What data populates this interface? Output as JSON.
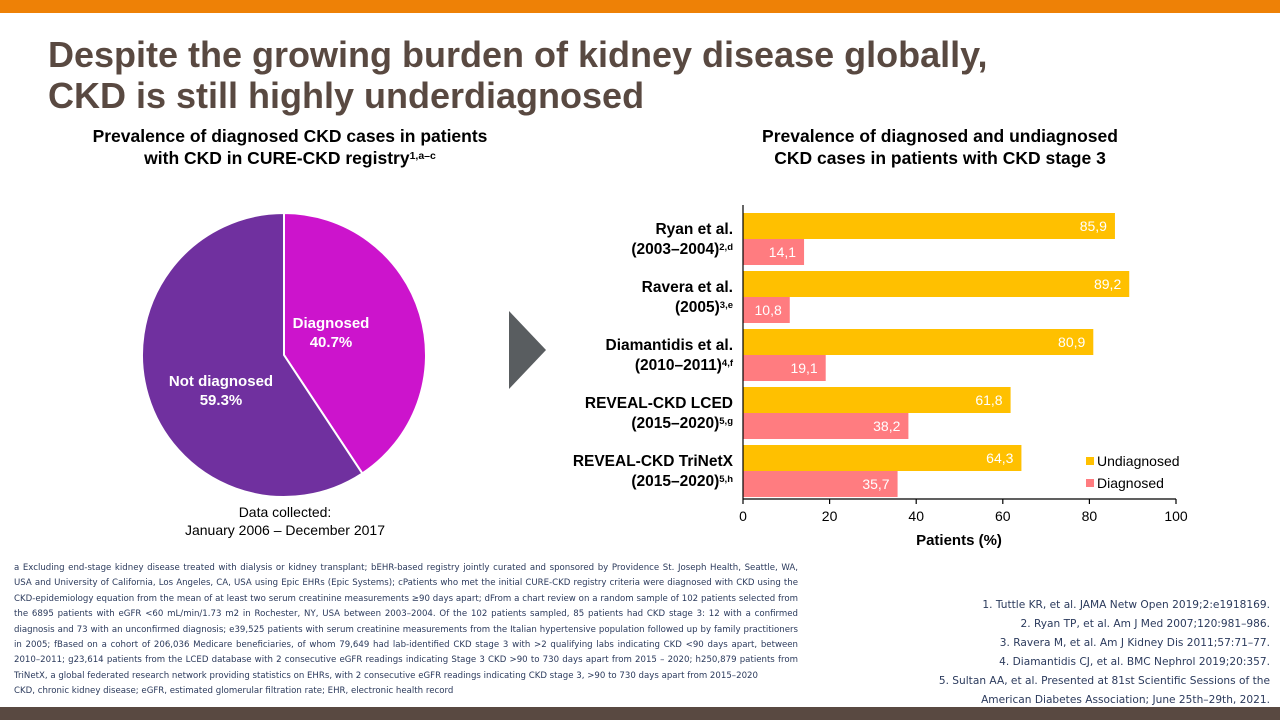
{
  "slide": {
    "title_lines": [
      "Despite the growing burden of kidney disease globally,",
      "CKD is still highly underdiagnosed"
    ],
    "colors": {
      "top_band": "#ee8106",
      "bottom_band": "#594941",
      "title": "#594941",
      "arrow": "#595d60"
    }
  },
  "pie_chart": {
    "title_line1": "Prevalence of diagnosed CKD cases in patients",
    "title_line2": "with CKD in CURE-CKD registry",
    "title_sup": "1,a–c",
    "note_line1": "Data collected:",
    "note_line2": "January 2006 – December 2017"
  },
  "bar_chart": {
    "title_line1": "Prevalence of diagnosed and undiagnosed",
    "title_line2": "CKD cases in patients with CKD stage 3",
    "rows": [
      {
        "line1": "Ryan et al.",
        "line2": "(2003–2004)",
        "sup": "2,d"
      },
      {
        "line1": "Ravera et al.",
        "line2": "(2005)",
        "sup": "3,e"
      },
      {
        "line1": "Diamantidis et al.",
        "line2": "(2010–2011)",
        "sup": "4,f"
      },
      {
        "line1": "REVEAL-CKD LCED",
        "line2": "(2015–2020)",
        "sup": "5,g"
      },
      {
        "line1": "REVEAL-CKD TriNetX",
        "line2": "(2015–2020)",
        "sup": "5,h"
      }
    ]
  },
  "chart_data": [
    {
      "type": "pie",
      "title": "Prevalence of diagnosed CKD cases in patients with CKD in CURE-CKD registry",
      "slices": [
        {
          "label": "Diagnosed",
          "value": 40.7,
          "display": "40.7%",
          "color": "#cc14cc"
        },
        {
          "label": "Not diagnosed",
          "value": 59.3,
          "display": "59.3%",
          "color": "#70309f"
        }
      ],
      "start": "12 o'clock, clockwise",
      "annotation": "Data collected: January 2006 – December 2017"
    },
    {
      "type": "bar",
      "orientation": "horizontal",
      "title": "Prevalence of diagnosed and undiagnosed CKD cases in patients with CKD stage 3",
      "categories": [
        "Ryan et al. (2003–2004)",
        "Ravera et al. (2005)",
        "Diamantidis et al. (2010–2011)",
        "REVEAL-CKD LCED (2015–2020)",
        "REVEAL-CKD TriNetX (2015–2020)"
      ],
      "series": [
        {
          "name": "Undiagnosed",
          "color": "#ffc000",
          "values": [
            85.9,
            89.2,
            80.9,
            61.8,
            64.3
          ],
          "labels": [
            "85,9",
            "89,2",
            "80,9",
            "61,8",
            "64,3"
          ]
        },
        {
          "name": "Diagnosed",
          "color": "#ff7c80",
          "values": [
            14.1,
            10.8,
            19.1,
            38.2,
            35.7
          ],
          "labels": [
            "14,1",
            "10,8",
            "19,1",
            "38,2",
            "35,7"
          ]
        }
      ],
      "xlabel": "Patients (%)",
      "ylabel": "",
      "xlim": [
        0,
        100
      ],
      "xticks": [
        "0",
        "20",
        "40",
        "60",
        "80",
        "100"
      ],
      "grid": false,
      "legend": "bottom-right"
    }
  ],
  "footnotes": {
    "body": "a Excluding end-stage kidney disease treated with dialysis or kidney transplant; bEHR-based registry jointly curated and sponsored by Providence St. Joseph Health, Seattle, WA, USA and University of California, Los Angeles, CA, USA using Epic EHRs (Epic Systems); cPatients who met the initial CURE-CKD registry criteria were diagnosed with CKD using the CKD-epidemiology equation from the mean of at least two serum creatinine measurements ≥90 days apart; dFrom a chart review on a random sample of 102 patients selected from the 6895 patients with eGFR <60 mL/min/1.73 m2 in Rochester, NY, USA between 2003–2004. Of the 102 patients sampled, 85 patients had CKD stage 3: 12 with a confirmed diagnosis and 73 with an unconfirmed diagnosis; e39,525 patients with serum creatinine measurements from the Italian hypertensive population followed up by family practitioners in 2005; fBased on a cohort of 206,036 Medicare beneficiaries, of whom 79,649 had lab-identified CKD stage 3 with >2 qualifying labs indicating CKD <90 days apart, between 2010–2011; g23,614 patients from the LCED database with 2 consecutive eGFR readings indicating Stage 3 CKD >90 to 730 days apart from 2015 – 2020; h250,879 patients from TriNetX, a global federated research network providing statistics on EHRs, with 2 consecutive eGFR readings indicating CKD stage 3, >90 to 730 days apart from 2015–2020",
    "abbreviations": "CKD, chronic kidney disease; eGFR, estimated glomerular filtration rate; EHR, electronic health record"
  },
  "references": [
    "1. Tuttle KR, et al. JAMA Netw Open 2019;2:e1918169.",
    "2. Ryan TP, et al. Am J Med 2007;120:981–986.",
    "3. Ravera M, et al. Am J Kidney Dis 2011;57:71–77.",
    "4. Diamantidis CJ, et al. BMC Nephrol 2019;20:357.",
    "5. Sultan AA, et al. Presented at 81st Scientific Sessions of the",
    "American Diabetes Association; June 25th–29th, 2021."
  ]
}
